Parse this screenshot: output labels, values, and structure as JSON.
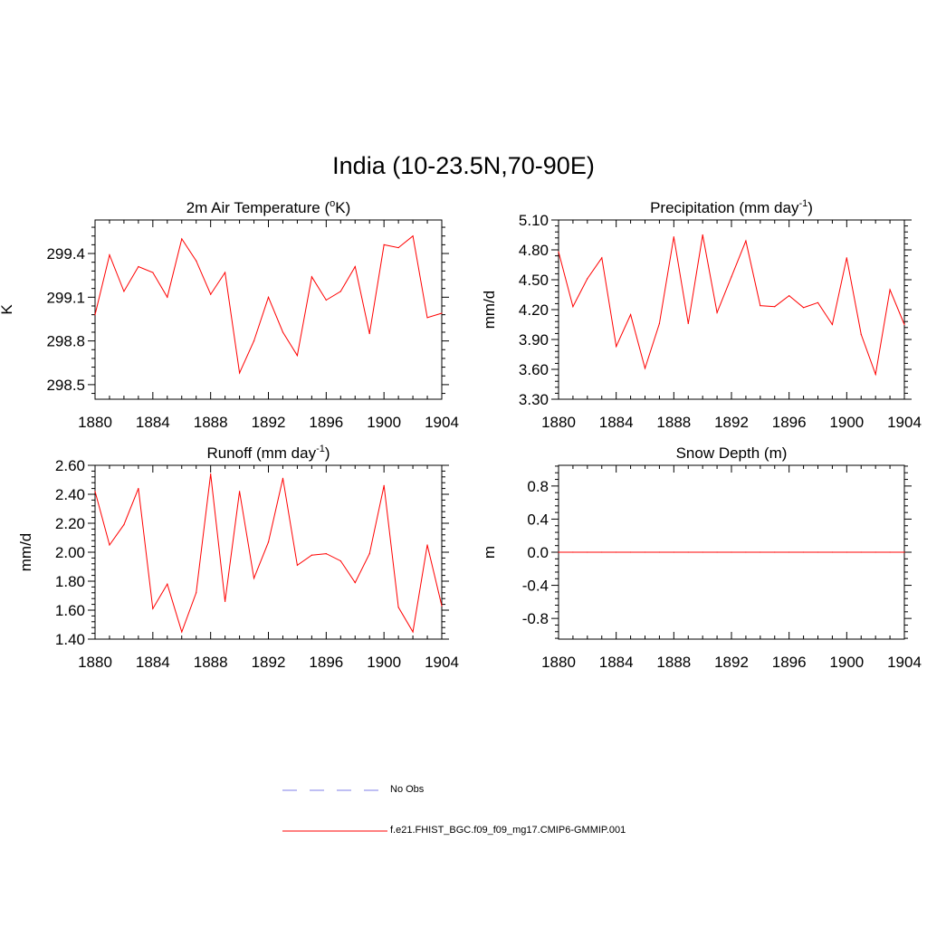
{
  "title": "India (10-23.5N,70-90E)",
  "colors": {
    "model_line": "#ff0000",
    "obs_line": "#9999ee",
    "axis": "#000000"
  },
  "legend": {
    "obs_label": "No Obs",
    "model_label": "f.e21.FHIST_BGC.f09_f09_mg17.CMIP6-GMMIP.001"
  },
  "chart_data": [
    {
      "type": "line",
      "title": "2m Air Temperature (",
      "title_sup": "o",
      "title_end": "K)",
      "ylabel": "K",
      "xlim": [
        1880,
        1904
      ],
      "ylim": [
        298.4,
        299.63
      ],
      "xticks": [
        "1880",
        "1884",
        "1888",
        "1892",
        "1896",
        "1900",
        "1904"
      ],
      "yticks": [
        "298.5",
        "298.8",
        "299.1",
        "299.4"
      ],
      "x": [
        1880,
        1881,
        1882,
        1883,
        1884,
        1885,
        1886,
        1887,
        1888,
        1889,
        1890,
        1891,
        1892,
        1893,
        1894,
        1895,
        1896,
        1897,
        1898,
        1899,
        1900,
        1901,
        1902,
        1903,
        1904
      ],
      "series": [
        {
          "values": [
            298.98,
            299.39,
            299.14,
            299.31,
            299.27,
            299.1,
            299.5,
            299.35,
            299.12,
            299.27,
            298.58,
            298.8,
            299.1,
            298.86,
            298.7,
            299.24,
            299.08,
            299.14,
            299.31,
            298.85,
            299.46,
            299.44,
            299.52,
            298.96,
            298.99
          ]
        }
      ]
    },
    {
      "type": "line",
      "title": "Precipitation (mm day",
      "title_sup": "-1",
      "title_end": ")",
      "ylabel": "mm/d",
      "xlim": [
        1880,
        1904
      ],
      "ylim": [
        3.3,
        5.1
      ],
      "xticks": [
        "1880",
        "1884",
        "1888",
        "1892",
        "1896",
        "1900",
        "1904"
      ],
      "yticks": [
        "3.30",
        "3.60",
        "3.90",
        "4.20",
        "4.50",
        "4.80",
        "5.10"
      ],
      "x": [
        1880,
        1881,
        1882,
        1883,
        1884,
        1885,
        1886,
        1887,
        1888,
        1889,
        1890,
        1891,
        1892,
        1893,
        1894,
        1895,
        1896,
        1897,
        1898,
        1899,
        1900,
        1901,
        1902,
        1903,
        1904
      ],
      "series": [
        {
          "values": [
            4.78,
            4.23,
            4.51,
            4.72,
            3.83,
            4.15,
            3.61,
            4.06,
            4.93,
            4.06,
            4.95,
            4.17,
            4.53,
            4.89,
            4.24,
            4.23,
            4.34,
            4.22,
            4.27,
            4.05,
            4.72,
            3.95,
            3.55,
            4.4,
            4.05
          ]
        }
      ]
    },
    {
      "type": "line",
      "title": "Runoff (mm day",
      "title_sup": "-1",
      "title_end": ")",
      "ylabel": "mm/d",
      "xlim": [
        1880,
        1904
      ],
      "ylim": [
        1.4,
        2.6
      ],
      "xticks": [
        "1880",
        "1884",
        "1888",
        "1892",
        "1896",
        "1900",
        "1904"
      ],
      "yticks": [
        "1.40",
        "1.60",
        "1.80",
        "2.00",
        "2.20",
        "2.40",
        "2.60"
      ],
      "x": [
        1880,
        1881,
        1882,
        1883,
        1884,
        1885,
        1886,
        1887,
        1888,
        1889,
        1890,
        1891,
        1892,
        1893,
        1894,
        1895,
        1896,
        1897,
        1898,
        1899,
        1900,
        1901,
        1902,
        1903,
        1904
      ],
      "series": [
        {
          "values": [
            2.42,
            2.05,
            2.19,
            2.44,
            1.61,
            1.78,
            1.45,
            1.72,
            2.54,
            1.66,
            2.42,
            1.82,
            2.07,
            2.51,
            1.91,
            1.98,
            1.99,
            1.94,
            1.79,
            1.99,
            2.46,
            1.62,
            1.45,
            2.05,
            1.63
          ]
        }
      ]
    },
    {
      "type": "line",
      "title": "Snow Depth (m)",
      "title_sup": "",
      "title_end": "",
      "ylabel": "m",
      "xlim": [
        1880,
        1904
      ],
      "ylim": [
        -1.05,
        1.05
      ],
      "xticks": [
        "1880",
        "1884",
        "1888",
        "1892",
        "1896",
        "1900",
        "1904"
      ],
      "yticks": [
        "-0.8",
        "-0.4",
        "0.0",
        "0.4",
        "0.8"
      ],
      "x": [
        1880,
        1881,
        1882,
        1883,
        1884,
        1885,
        1886,
        1887,
        1888,
        1889,
        1890,
        1891,
        1892,
        1893,
        1894,
        1895,
        1896,
        1897,
        1898,
        1899,
        1900,
        1901,
        1902,
        1903,
        1904
      ],
      "series": [
        {
          "values": [
            0,
            0,
            0,
            0,
            0,
            0,
            0,
            0,
            0,
            0,
            0,
            0,
            0,
            0,
            0,
            0,
            0,
            0,
            0,
            0,
            0,
            0,
            0,
            0,
            0
          ]
        }
      ]
    }
  ]
}
